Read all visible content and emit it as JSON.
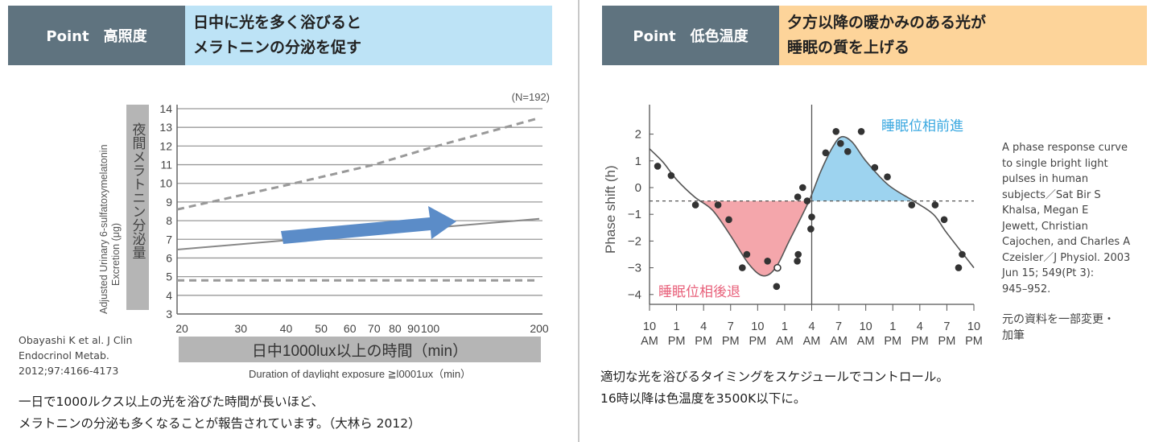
{
  "left": {
    "point_label": "Point　高照度",
    "headline": [
      "日中に光を多く浴びると",
      "メラトニンの分泌を促す"
    ],
    "citation": [
      "Obayashi K et al. J Clin",
      "Endocrinol Metab.",
      "2012;97:4166-4173"
    ],
    "caption": [
      "一日で1000ルクス以上の光を浴びた時間が長いほど、",
      "メラトニンの分泌も多くなることが報告されています。（大林ら 2012）"
    ]
  },
  "right": {
    "point_label": "Point　低色温度",
    "headline": [
      "夕方以降の暖かみのある光が",
      "睡眠の質を上げる"
    ],
    "reference": [
      "A phase response curve",
      "to single bright light",
      "pulses in human",
      "subjects／Sat Bir S",
      "Khalsa, Megan E",
      "Jewett, Christian",
      "Cajochen, and Charles A",
      "Czeisler／J Physiol. 2003",
      "Jun 15; 549(Pt 3):",
      "945–952."
    ],
    "note": [
      "元の資料を一部変更・",
      "加筆"
    ],
    "caption": [
      "適切な光を浴びるタイミングをスケジュールでコントロール。",
      "16時以降は色温度を3500K以下に。"
    ]
  },
  "colors": {
    "header_dark": "#5f737f",
    "header_blue": "#bde3f6",
    "header_orange": "#fdd49a",
    "advance": "#3aa8e0",
    "delay": "#e8607a",
    "advance_fill": "#9dd3ef",
    "delay_fill": "#f4a6ab",
    "arrow": "#5b8cc8"
  },
  "chart_data": [
    {
      "type": "line",
      "annotation": "(N=192)",
      "ylabel_ja": "夜間メラトニン分泌量",
      "ylabel_en": [
        "Adjusted Urinary 6-sulfatoxymelatonin",
        "Excretion (μg)"
      ],
      "xlabel_ja": "日中1000lux以上の時間（min）",
      "xlabel_en": "Duration of daylight exposure ≧l0001ux（min）",
      "x_scale": "log",
      "xlim": [
        20,
        200
      ],
      "ylim": [
        3,
        14
      ],
      "grid": true,
      "xticks": [
        20,
        30,
        40,
        50,
        60,
        70,
        80,
        90,
        100,
        200
      ],
      "yticks": [
        3,
        4,
        5,
        6,
        7,
        8,
        9,
        10,
        11,
        12,
        13,
        14
      ],
      "series": [
        {
          "style": "dashed",
          "x": [
            20,
            40,
            70,
            100,
            200
          ],
          "y": [
            8.6,
            9.9,
            11.0,
            11.9,
            13.5
          ]
        },
        {
          "style": "solid",
          "x": [
            20,
            200
          ],
          "y": [
            6.45,
            8.1
          ]
        },
        {
          "style": "dashed",
          "x": [
            20,
            200
          ],
          "y": [
            4.8,
            4.8
          ]
        }
      ]
    },
    {
      "type": "scatter",
      "ylabel": "Phase shift (h)",
      "ylim": [
        -4.5,
        2.8
      ],
      "yticks": [
        2,
        1,
        0,
        -1,
        -2,
        -3,
        -4
      ],
      "xticks": [
        [
          "10",
          "AM"
        ],
        [
          "1",
          "PM"
        ],
        [
          "4",
          "PM"
        ],
        [
          "7",
          "PM"
        ],
        [
          "10",
          "PM"
        ],
        [
          "1",
          "AM"
        ],
        [
          "4",
          "AM"
        ],
        [
          "7",
          "AM"
        ],
        [
          "10",
          "AM"
        ],
        [
          "1",
          "PM"
        ],
        [
          "4",
          "PM"
        ],
        [
          "7",
          "PM"
        ],
        [
          "10",
          "PM"
        ]
      ],
      "x_unit": "hours from 10 AM",
      "xlim": [
        0,
        36
      ],
      "reference_line": -0.5,
      "advance_label": "睡眠位相前進",
      "delay_label": "睡眠位相後退",
      "points": [
        [
          0.9,
          0.8
        ],
        [
          2.4,
          0.45
        ],
        [
          5.1,
          -0.65
        ],
        [
          7.6,
          -0.65
        ],
        [
          8.8,
          -1.2
        ],
        [
          10.3,
          -3.0
        ],
        [
          10.8,
          -2.5
        ],
        [
          13.1,
          -2.75
        ],
        [
          14.1,
          -3.7
        ],
        [
          16.4,
          -2.75
        ],
        [
          16.5,
          -2.5
        ],
        [
          16.45,
          -0.35
        ],
        [
          17.0,
          0.0
        ],
        [
          17.5,
          -0.5
        ],
        [
          18.0,
          -1.1
        ],
        [
          17.9,
          -1.55
        ],
        [
          19.55,
          1.3
        ],
        [
          20.7,
          2.1
        ],
        [
          21.2,
          1.65
        ],
        [
          22.0,
          1.35
        ],
        [
          23.5,
          2.1
        ],
        [
          25.0,
          0.75
        ],
        [
          26.4,
          0.4
        ],
        [
          29.1,
          -0.65
        ],
        [
          31.7,
          -0.65
        ],
        [
          32.7,
          -1.2
        ],
        [
          34.3,
          -3.0
        ],
        [
          34.7,
          -2.5
        ]
      ],
      "open_points": [
        [
          14.2,
          -3.0
        ]
      ],
      "curve": [
        [
          0,
          1.45
        ],
        [
          1.5,
          0.95
        ],
        [
          3,
          0.3
        ],
        [
          5,
          -0.35
        ],
        [
          7,
          -0.85
        ],
        [
          9,
          -1.8
        ],
        [
          11,
          -2.85
        ],
        [
          12.6,
          -3.3
        ],
        [
          14,
          -3.0
        ],
        [
          15.5,
          -2.0
        ],
        [
          17.7,
          -0.5
        ],
        [
          19,
          0.6
        ],
        [
          20.3,
          1.5
        ],
        [
          21.3,
          1.9
        ],
        [
          22.5,
          1.7
        ],
        [
          24,
          1.0
        ],
        [
          26.5,
          0.1
        ],
        [
          29.3,
          -0.5
        ],
        [
          31.5,
          -1.0
        ],
        [
          33,
          -1.7
        ],
        [
          36,
          -3.0
        ]
      ]
    }
  ]
}
